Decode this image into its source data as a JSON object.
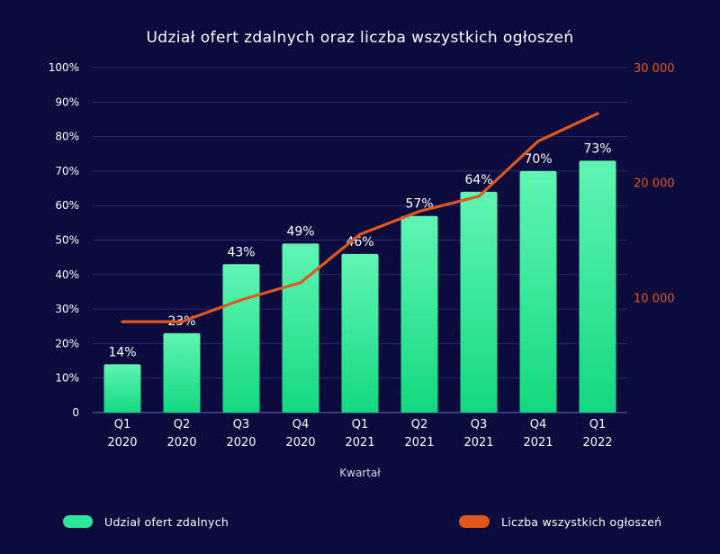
{
  "chart_data": {
    "type": "bar",
    "title": "Udział  ofert  zdalnych  oraz  liczba  wszystkich  ogłoszeń",
    "xlabel": "Kwartał",
    "categories": [
      [
        "Q1",
        "2020"
      ],
      [
        "Q2",
        "2020"
      ],
      [
        "Q3",
        "2020"
      ],
      [
        "Q4",
        "2020"
      ],
      [
        "Q1",
        "2021"
      ],
      [
        "Q2",
        "2021"
      ],
      [
        "Q3",
        "2021"
      ],
      [
        "Q4",
        "2021"
      ],
      [
        "Q1",
        "2022"
      ]
    ],
    "y_left": {
      "min": 0,
      "max": 100,
      "step": 10,
      "tick_labels": [
        "0",
        "10%",
        "20%",
        "30%",
        "40%",
        "50%",
        "60%",
        "70%",
        "80%",
        "90%",
        "100%"
      ]
    },
    "y_right": {
      "min": 0,
      "max": 30000,
      "ticks": [
        10000,
        20000,
        30000
      ],
      "tick_labels": [
        "10 000",
        "20 000",
        "30 000"
      ]
    },
    "series": [
      {
        "name": "Udział  ofert  zdalnych",
        "axis": "left",
        "kind": "bar",
        "color": "#2ee89a",
        "values": [
          14,
          23,
          43,
          49,
          46,
          57,
          64,
          70,
          73
        ],
        "labels": [
          "14%",
          "23%",
          "43%",
          "49%",
          "46%",
          "57%",
          "64%",
          "70%",
          "73%"
        ]
      },
      {
        "name": "Liczba  wszystkich  ogłoszeń",
        "axis": "right",
        "kind": "line",
        "color": "#e0571c",
        "values": [
          7900,
          7900,
          9800,
          11300,
          15500,
          17500,
          18800,
          23600,
          26000
        ]
      }
    ],
    "grid": true,
    "legend": "bottom"
  }
}
